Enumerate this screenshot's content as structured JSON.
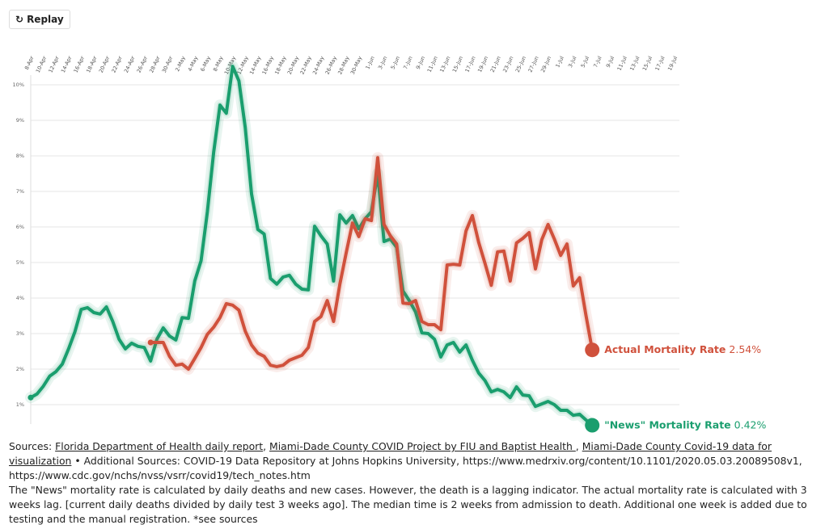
{
  "replay_button": "Replay",
  "chart_data": {
    "type": "line",
    "categories": [
      "8-Apr",
      null,
      "10-Apr",
      null,
      "12-Apr",
      null,
      "14-Apr",
      null,
      "16-Apr",
      null,
      "18-Apr",
      null,
      "20-Apr",
      null,
      "22-Apr",
      null,
      "24-Apr",
      null,
      "26-Apr",
      null,
      "28-Apr",
      null,
      "30-Apr",
      null,
      "2-May",
      null,
      "4-May",
      null,
      "6-May",
      null,
      "8-May",
      null,
      "10-May",
      null,
      "12-May",
      null,
      "14-May",
      null,
      "16-May",
      null,
      "18-May",
      null,
      "20-May",
      null,
      "22-May",
      null,
      "24-May",
      null,
      "26-May",
      null,
      "28-May",
      null,
      "30-May",
      null,
      "1-Jun",
      null,
      "3-Jun",
      null,
      "5-Jun",
      null,
      "7-Jun",
      null,
      "9-Jun",
      null,
      "11-Jun",
      null,
      "13-Jun",
      null,
      "15-Jun",
      null,
      "17-Jun",
      null,
      "19-Jun",
      null,
      "21-Jun",
      null,
      "23-Jun",
      null,
      "25-Jun",
      null,
      "27-Jun",
      null,
      "29-Jun",
      null,
      "1-Jul",
      null,
      "3-Jul",
      null,
      "5-Jul",
      null,
      "7-Jul",
      null,
      "9-Jul",
      null,
      "11-Jul",
      null,
      "13-Jul",
      null,
      "15-Jul",
      null,
      "17-Jul",
      null,
      "19-Jul"
    ],
    "ylim": [
      0.5,
      10.5
    ],
    "yticks": [
      {
        "value": 1,
        "label": "1%"
      },
      {
        "value": 2,
        "label": "2%"
      },
      {
        "value": 3,
        "label": "3%"
      },
      {
        "value": 4,
        "label": "4%"
      },
      {
        "value": 5,
        "label": "5%"
      },
      {
        "value": 6,
        "label": "6%"
      },
      {
        "value": 7,
        "label": "7%"
      },
      {
        "value": 8,
        "label": "8%"
      },
      {
        "value": 9,
        "label": "9%"
      },
      {
        "value": 10,
        "label": "10%"
      }
    ],
    "grid": true,
    "series": [
      {
        "name": "\"News\" Mortality Rate",
        "color": "#1a9e6e",
        "values": [
          1.2,
          1.3,
          1.52,
          1.8,
          1.93,
          2.14,
          2.57,
          3.05,
          3.68,
          3.73,
          3.59,
          3.55,
          3.75,
          3.34,
          2.84,
          2.57,
          2.73,
          2.64,
          2.61,
          2.23,
          2.84,
          3.16,
          2.93,
          2.82,
          3.45,
          3.43,
          4.48,
          5.05,
          6.43,
          8.11,
          9.43,
          9.2,
          10.52,
          10.11,
          8.8,
          6.93,
          5.93,
          5.8,
          4.55,
          4.39,
          4.59,
          4.64,
          4.39,
          4.25,
          4.23,
          6.02,
          5.75,
          5.52,
          4.48,
          6.34,
          6.11,
          6.32,
          5.95,
          6.23,
          6.43,
          7.5,
          5.59,
          5.66,
          5.43,
          4.2,
          3.93,
          3.61,
          3.02,
          3.0,
          2.84,
          2.34,
          2.68,
          2.75,
          2.48,
          2.68,
          2.25,
          1.89,
          1.68,
          1.36,
          1.43,
          1.36,
          1.2,
          1.5,
          1.27,
          1.25,
          0.95,
          1.02,
          1.09,
          1.0,
          0.84,
          0.84,
          0.7,
          0.73,
          0.57,
          0.42,
          null,
          null,
          null,
          null,
          null,
          null,
          null,
          null,
          null,
          null,
          null,
          null,
          null
        ],
        "value_labels": [
          null,
          null,
          null,
          null,
          null,
          null,
          null,
          null,
          null,
          null,
          null,
          null,
          null,
          null,
          null,
          null,
          null,
          null,
          null,
          null,
          null,
          null,
          null,
          null,
          null,
          null,
          null,
          null,
          null,
          null,
          null,
          null,
          null,
          null,
          null,
          null,
          null,
          null,
          null,
          null,
          null,
          null,
          null,
          null,
          null,
          null,
          null,
          null,
          null,
          null,
          null,
          null,
          null,
          null,
          null,
          null,
          null,
          null,
          null,
          null,
          null,
          null,
          null,
          null,
          null,
          null,
          null,
          null,
          null,
          null,
          null,
          null,
          null,
          null,
          null,
          null,
          null,
          null,
          null,
          null,
          null,
          null,
          null,
          null,
          null,
          null,
          null,
          null,
          null,
          "0.42%",
          null,
          null,
          null,
          null,
          null,
          null,
          null,
          null,
          null,
          null,
          null,
          null,
          null
        ]
      },
      {
        "name": "Actual Mortality Rate",
        "color": "#d0513c",
        "values": [
          null,
          null,
          null,
          null,
          null,
          null,
          null,
          null,
          null,
          null,
          null,
          null,
          null,
          null,
          null,
          null,
          null,
          null,
          null,
          2.75,
          2.75,
          2.75,
          2.36,
          2.11,
          2.14,
          2.0,
          2.3,
          2.61,
          2.98,
          3.18,
          3.45,
          3.84,
          3.8,
          3.66,
          3.07,
          2.68,
          2.45,
          2.36,
          2.11,
          2.07,
          2.11,
          2.25,
          2.32,
          2.39,
          2.61,
          3.34,
          3.48,
          3.93,
          3.34,
          4.39,
          5.27,
          6.11,
          5.73,
          6.23,
          6.18,
          7.95,
          6.07,
          5.75,
          5.52,
          3.86,
          3.84,
          3.93,
          3.34,
          3.25,
          3.25,
          3.11,
          4.93,
          4.95,
          4.93,
          5.89,
          6.32,
          5.57,
          4.98,
          4.36,
          5.3,
          5.32,
          4.48,
          5.55,
          5.68,
          5.84,
          4.82,
          5.64,
          6.07,
          5.66,
          5.2,
          5.52,
          4.34,
          4.57,
          3.52,
          2.54,
          null,
          null,
          null,
          null,
          null,
          null,
          null,
          null,
          null,
          null,
          null,
          null,
          null
        ],
        "value_labels": [
          null,
          null,
          null,
          null,
          null,
          null,
          null,
          null,
          null,
          null,
          null,
          null,
          null,
          null,
          null,
          null,
          null,
          null,
          null,
          null,
          null,
          null,
          null,
          null,
          null,
          null,
          null,
          null,
          null,
          null,
          null,
          null,
          null,
          null,
          null,
          null,
          null,
          null,
          null,
          null,
          null,
          null,
          null,
          null,
          null,
          null,
          null,
          null,
          null,
          null,
          null,
          null,
          null,
          null,
          null,
          null,
          null,
          null,
          null,
          null,
          null,
          null,
          null,
          null,
          null,
          null,
          null,
          null,
          null,
          null,
          null,
          null,
          null,
          null,
          null,
          null,
          null,
          null,
          null,
          null,
          null,
          null,
          null,
          null,
          null,
          null,
          null,
          null,
          null,
          "2.54%",
          null,
          null,
          null,
          null,
          null,
          null,
          null,
          null,
          null,
          null,
          null,
          null,
          null
        ]
      }
    ]
  },
  "footer": {
    "sources_label": "Sources:",
    "sources": [
      "Florida Department of Health daily report",
      "Miami-Dade County COVID Project by FIU and Baptist Health ",
      "Miami-Dade County Covid-19 data for visualization"
    ],
    "separator": ",",
    "bullet": "•",
    "additional": "Additional Sources: COVID-19 Data Repository at Johns Hopkins University, https://www.medrxiv.org/content/10.1101/2020.05.03.20089508v1, https://www.cdc.gov/nchs/nvss/vsrr/covid19/tech_notes.htm",
    "note": "The \"News\" mortality rate is calculated by daily deaths and new cases. However, the death is a lagging indicator. The actual mortality rate is calculated with 3 weeks lag. [current daily deaths divided by daily test 3 weeks ago]. The median time is 2 weeks from admission to death. Additional one week is added due to testing and the manual registration. *see sources"
  }
}
